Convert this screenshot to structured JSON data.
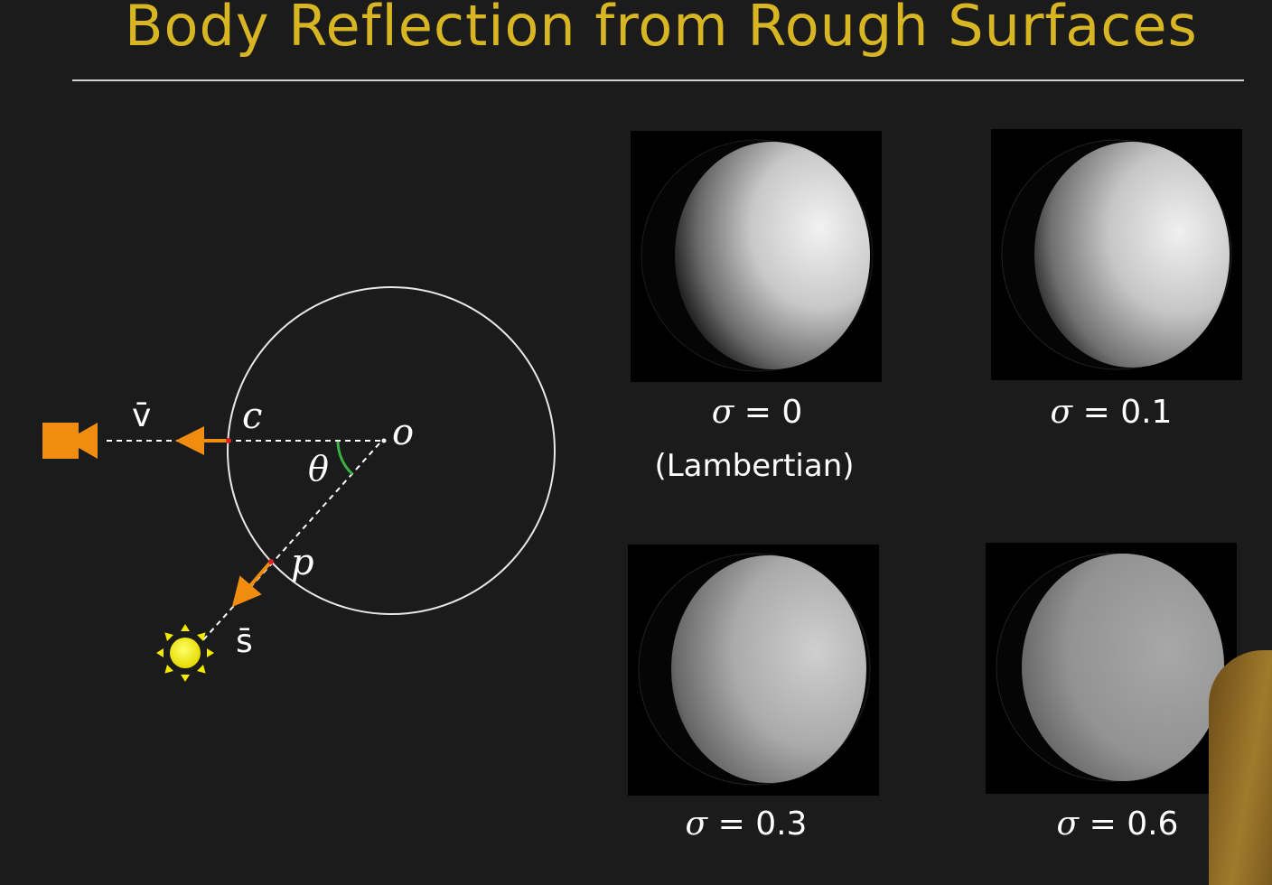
{
  "slide": {
    "title": "Body Reflection from Rough Surfaces"
  },
  "diagram": {
    "labels": {
      "v": "v̄",
      "c": "c",
      "o": "o",
      "theta": "θ",
      "p": "p",
      "s": "s̄"
    },
    "colors": {
      "circle": "#e8e8e8",
      "camera": "#f08c10",
      "arrow": "#f08c10",
      "sun": "#f2e800",
      "angle_arc": "#3cb043",
      "point": "#e02020"
    },
    "icons": [
      "camera-icon",
      "sun-icon"
    ]
  },
  "renders": [
    {
      "sigma_symbol": "σ",
      "equals": "=",
      "value": "0",
      "note": "(Lambertian)"
    },
    {
      "sigma_symbol": "σ",
      "equals": "=",
      "value": "0.1"
    },
    {
      "sigma_symbol": "σ",
      "equals": "=",
      "value": "0.3"
    },
    {
      "sigma_symbol": "σ",
      "equals": "=",
      "value": "0.6"
    }
  ]
}
